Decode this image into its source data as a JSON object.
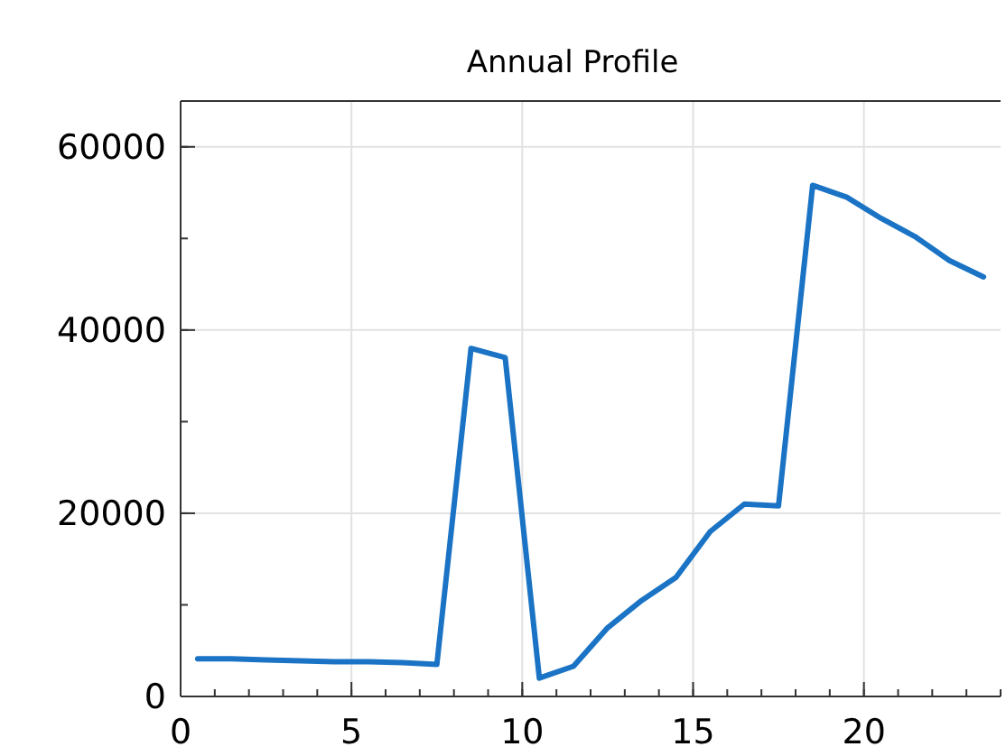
{
  "chart_data": {
    "type": "line",
    "title": "Annual Profile",
    "x": [
      0.5,
      1.5,
      2.5,
      3.5,
      4.5,
      5.5,
      6.5,
      7.5,
      8.5,
      9.5,
      10.5,
      11.5,
      12.5,
      13.5,
      14.5,
      15.5,
      16.5,
      17.5,
      18.5,
      19.5,
      20.5,
      21.5,
      22.5,
      23.5
    ],
    "series": [
      {
        "color": "#1a73c4",
        "values": [
          4100,
          4100,
          4000,
          3900,
          3800,
          3800,
          3700,
          3500,
          38000,
          37000,
          2000,
          3300,
          7500,
          10500,
          13000,
          18000,
          21000,
          20800,
          55800,
          54500,
          52200,
          50200,
          47600,
          45800
        ]
      }
    ],
    "xlim": [
      0,
      24
    ],
    "ylim": [
      0,
      65000
    ],
    "xticks": [
      0,
      5,
      10,
      15,
      20
    ],
    "yticks": [
      0,
      20000,
      40000,
      60000
    ],
    "grid": true,
    "marker": "none",
    "line_style": "solid"
  }
}
